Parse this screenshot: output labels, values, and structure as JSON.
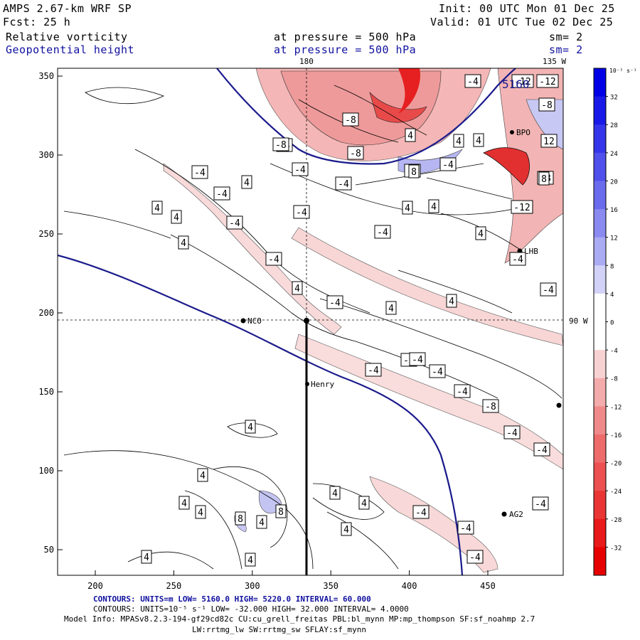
{
  "header": {
    "model": "AMPS 2.67-km WRF SP",
    "fcst": "Fcst:    25 h",
    "init": "Init: 00 UTC Mon 01 Dec 25",
    "valid": "Valid: 01 UTC Tue 02 Dec 25",
    "field1": "Relative vorticity",
    "field2": "Geopotential height",
    "pressure1": "at pressure =  500 hPa",
    "pressure2": "at pressure =  500 hPa",
    "sm1": "sm= 2",
    "sm2": "sm= 2",
    "top_label_180": "180",
    "top_label_135w": "135 W",
    "right_label_90w": "90 W"
  },
  "colorbar": {
    "units": "10⁻⁵ s⁻¹",
    "ticks": [
      "32",
      "28",
      "24",
      "20",
      "16",
      "12",
      "8",
      "4",
      "0",
      "-4",
      "-8",
      "-12",
      "-16",
      "-20",
      "-24",
      "-28",
      "-32"
    ],
    "colors": [
      "#0000e6",
      "#1a1ae8",
      "#3535ea",
      "#5050ec",
      "#6b6bee",
      "#8a8af0",
      "#ababf4",
      "#d2d2f8",
      "#ffffff",
      "#ffffff",
      "#f8d2d2",
      "#f4abab",
      "#f08a8a",
      "#ee6b6b",
      "#ec5050",
      "#ea3535",
      "#e81a1a",
      "#e60000"
    ]
  },
  "axes": {
    "x_ticks": [
      "200",
      "250",
      "300",
      "350",
      "400",
      "450"
    ],
    "y_ticks": [
      "350",
      "300",
      "250",
      "200",
      "150",
      "100",
      "50"
    ]
  },
  "stations": {
    "nco": "NCO",
    "henry": "Henry",
    "ag2": "AG2",
    "bpo": "BPO",
    "lhb": "LHB"
  },
  "contour_labels": {
    "height": "5160",
    "vort": [
      "-4",
      "-4",
      "-4",
      "-4",
      "-4",
      "-4",
      "-4",
      "-4",
      "-4",
      "-4",
      "-4",
      "-4",
      "-4",
      "-4",
      "-4",
      "-4",
      "-4",
      "-4",
      "-4",
      "-4",
      "-4",
      "-4",
      "-4",
      "-4",
      "-4",
      "-8",
      "-8",
      "-8",
      "-8",
      "-8",
      "-8",
      "-8",
      "-12",
      "-12",
      "-12",
      "12",
      "4",
      "4",
      "4",
      "4",
      "4",
      "4",
      "4",
      "4",
      "4",
      "4",
      "4",
      "4",
      "4",
      "4",
      "4",
      "4",
      "4",
      "4",
      "4",
      "4",
      "4",
      "4",
      "4",
      "8",
      "8",
      "8",
      "8"
    ]
  },
  "footer": {
    "line1_label": "CONTOURS:  UNITS=m  LOW=  5160.0          HIGH=  5220.0          INTERVAL=  60.000",
    "line2_label": "CONTOURS:  UNITS=10⁻⁵ s⁻¹  LOW= -32.000          HIGH=  32.000          INTERVAL=  4.0000",
    "line3_label": "Model Info: MPASv8.2.3-194-gf29cd82c CU:cu_grell_freitas PBL:bl_mynn MP:mp_thompson SF:sf_noahmp 2.7",
    "line4_label": "LW:rrtmg_lw SW:rrtmg_sw SFLAY:sf_mynn"
  }
}
